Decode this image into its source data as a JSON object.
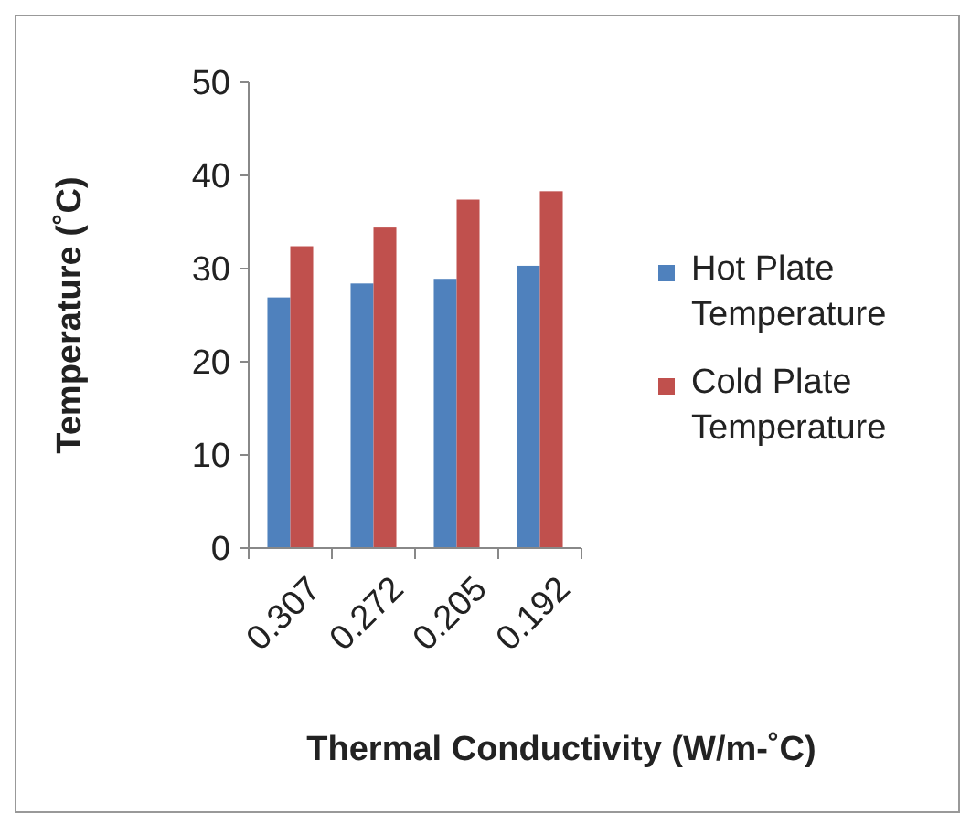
{
  "chart_data": {
    "type": "bar",
    "xlabel": "Thermal Conductivity (W/m-˚C)",
    "ylabel": "Temperature (˚C)",
    "categories": [
      "0.307",
      "0.272",
      "0.205",
      "0.192"
    ],
    "series": [
      {
        "name": "Hot Plate Temperature",
        "color": "#4f81bd",
        "values": [
          26.9,
          28.4,
          28.9,
          30.3
        ]
      },
      {
        "name": "Cold Plate Temperature",
        "color": "#c0504d",
        "values": [
          32.4,
          34.4,
          37.4,
          38.3
        ]
      }
    ],
    "ylim": [
      0,
      50
    ],
    "yticks": [
      0,
      10,
      20,
      30,
      40,
      50
    ],
    "grid": false,
    "legend": "right"
  }
}
